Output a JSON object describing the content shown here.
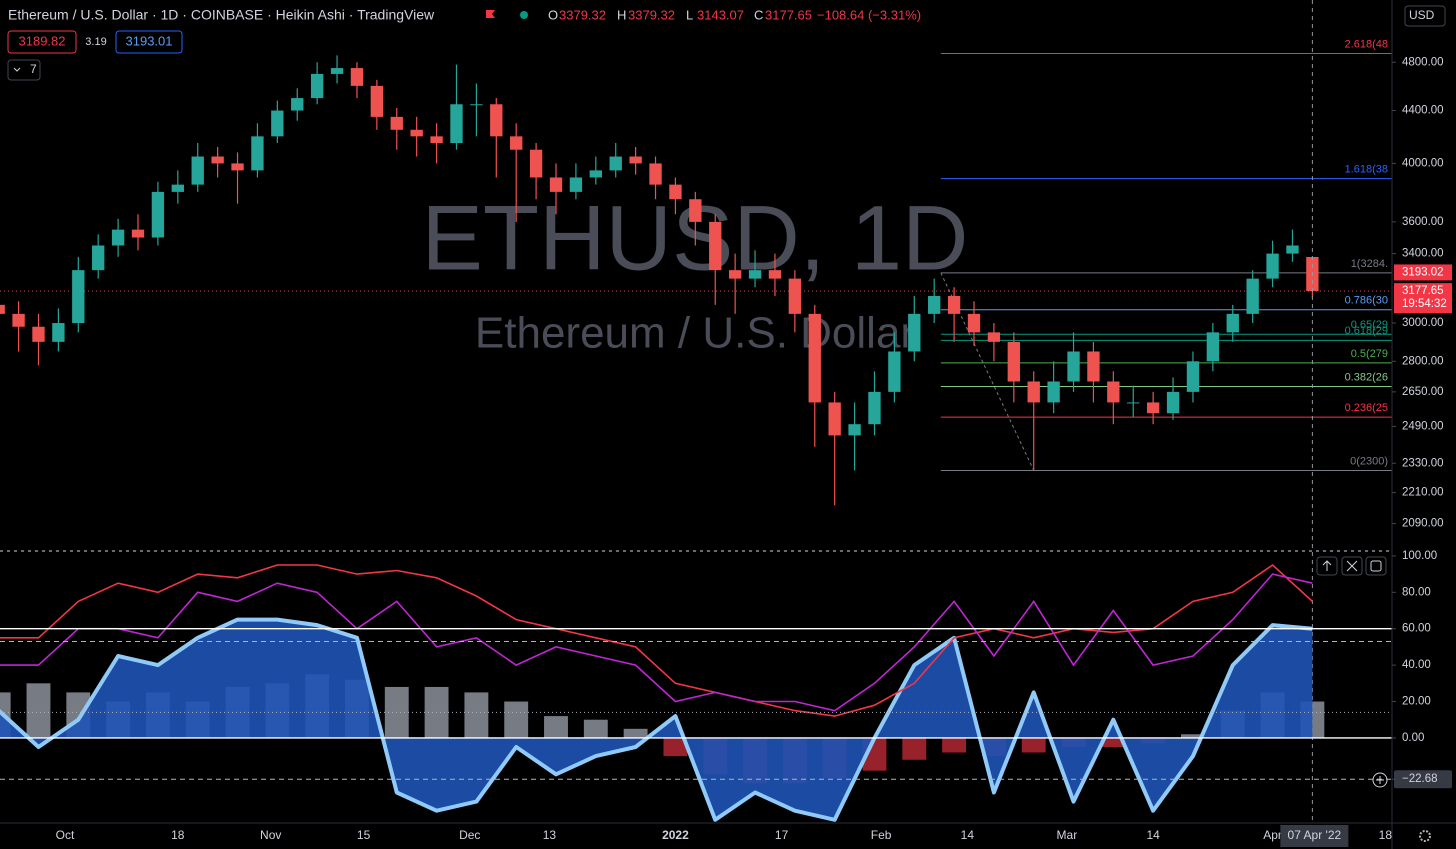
{
  "header": {
    "title": "Ethereum / U.S. Dollar · 1D · COINBASE · Heikin Ashi · TradingView",
    "ohlc": [
      {
        "label": "O",
        "value": 3379.32
      },
      {
        "label": "H",
        "value": 3379.32
      },
      {
        "label": "L",
        "value": 3143.07
      },
      {
        "label": "C",
        "value": 3177.65
      }
    ],
    "change": "−108.64 (−3.31%)",
    "bid": 3189.82,
    "spread": 3.19,
    "ask": 3193.01,
    "indicators_count": 7,
    "currency": "USD"
  },
  "watermark": {
    "symbol": "ETHUSD, 1D",
    "name": "Ethereum / U.S. Dollar"
  },
  "chart_data": [
    {
      "type": "candlestick",
      "log_scale": true,
      "up_color": "#26a69a",
      "down_color": "#ef5350",
      "x": [
        -10,
        -7,
        -4,
        -1,
        2,
        5,
        8,
        11,
        14,
        17,
        20,
        23,
        26,
        29,
        32,
        35,
        38,
        41,
        44,
        47,
        50,
        53,
        56,
        59,
        62,
        65,
        68,
        71,
        74,
        77,
        80,
        83,
        86,
        89,
        92,
        95,
        98,
        101,
        104,
        107,
        110,
        113,
        116,
        119,
        122,
        125,
        128,
        131,
        134,
        137,
        140,
        143,
        146,
        149,
        152,
        155,
        158,
        161,
        164,
        167,
        170,
        173,
        176,
        179,
        182,
        185,
        188
      ],
      "open": [
        3100,
        3050,
        2980,
        2900,
        3000,
        3300,
        3450,
        3550,
        3500,
        3800,
        3850,
        4050,
        4000,
        3950,
        4200,
        4400,
        4500,
        4700,
        4750,
        4600,
        4350,
        4250,
        4200,
        4150,
        4450,
        4450,
        4200,
        4100,
        3900,
        3800,
        3900,
        3950,
        4050,
        4000,
        3850,
        3750,
        3600,
        3300,
        3250,
        3300,
        3250,
        3050,
        2600,
        2450,
        2500,
        2650,
        2850,
        3050,
        3150,
        3050,
        2950,
        2900,
        2700,
        2600,
        2700,
        2850,
        2700,
        2600,
        2600,
        2550,
        2650,
        2800,
        2950,
        3050,
        3250,
        3400,
        3379.32
      ],
      "high": [
        3180,
        3120,
        3050,
        3080,
        3380,
        3520,
        3620,
        3650,
        3870,
        3950,
        4150,
        4120,
        4080,
        4300,
        4480,
        4580,
        4800,
        4860,
        4800,
        4650,
        4420,
        4350,
        4300,
        4780,
        4620,
        4500,
        4300,
        4150,
        4000,
        4000,
        4050,
        4150,
        4120,
        4050,
        3900,
        3800,
        3650,
        3400,
        3420,
        3400,
        3300,
        3100,
        2650,
        2600,
        2750,
        2950,
        3150,
        3250,
        3200,
        3120,
        3000,
        2950,
        2750,
        2800,
        2950,
        2900,
        2750,
        2680,
        2650,
        2720,
        2850,
        3000,
        3100,
        3300,
        3480,
        3550,
        3379.32
      ],
      "low": [
        2950,
        2850,
        2780,
        2850,
        2950,
        3250,
        3380,
        3420,
        3450,
        3720,
        3800,
        3900,
        3720,
        3900,
        4150,
        4320,
        4450,
        4620,
        4500,
        4250,
        4100,
        4050,
        4000,
        4100,
        4200,
        3900,
        3600,
        3750,
        3650,
        3750,
        3850,
        3900,
        3920,
        3750,
        3650,
        3450,
        3100,
        3050,
        3200,
        3150,
        2950,
        2400,
        2160,
        2300,
        2450,
        2600,
        2800,
        3000,
        2900,
        2880,
        2800,
        2600,
        2300,
        2550,
        2650,
        2600,
        2500,
        2530,
        2500,
        2520,
        2600,
        2750,
        2900,
        3000,
        3200,
        3350,
        3143.07
      ],
      "close": [
        3050,
        2980,
        2900,
        3000,
        3300,
        3450,
        3550,
        3500,
        3800,
        3850,
        4050,
        4000,
        3950,
        4200,
        4400,
        4500,
        4700,
        4750,
        4600,
        4350,
        4250,
        4200,
        4150,
        4450,
        4450,
        4200,
        4100,
        3900,
        3800,
        3900,
        3950,
        4050,
        4000,
        3850,
        3750,
        3600,
        3300,
        3250,
        3300,
        3250,
        3050,
        2600,
        2450,
        2500,
        2650,
        2850,
        3050,
        3150,
        3050,
        2950,
        2900,
        2700,
        2600,
        2700,
        2850,
        2700,
        2600,
        2600,
        2550,
        2650,
        2800,
        2950,
        3050,
        3250,
        3400,
        3450,
        3177.65
      ],
      "xlim": [
        -9.8,
        200
      ],
      "xticks": [
        {
          "value": 0,
          "label": "Oct"
        },
        {
          "value": 17,
          "label": "18"
        },
        {
          "value": 31,
          "label": "Nov"
        },
        {
          "value": 45,
          "label": "15"
        },
        {
          "value": 61,
          "label": "Dec"
        },
        {
          "value": 73,
          "label": "13"
        },
        {
          "value": 92,
          "label": "2022"
        },
        {
          "value": 108,
          "label": "17"
        },
        {
          "value": 123,
          "label": "Feb"
        },
        {
          "value": 136,
          "label": "14"
        },
        {
          "value": 151,
          "label": "Mar"
        },
        {
          "value": 164,
          "label": "14"
        },
        {
          "value": 182,
          "label": "Apr"
        },
        {
          "value": 199,
          "label": "18"
        }
      ],
      "ylim": [
        2000,
        5370
      ],
      "yticks": [
        {
          "value": 4800,
          "label": "4800.00"
        },
        {
          "value": 4400,
          "label": "4400.00"
        },
        {
          "value": 4000,
          "label": "4000.00"
        },
        {
          "value": 3600,
          "label": "3600.00"
        },
        {
          "value": 3400,
          "label": "3400.00"
        },
        {
          "value": 3000,
          "label": "3000.00"
        },
        {
          "value": 2800,
          "label": "2800.00"
        },
        {
          "value": 2650,
          "label": "2650.00"
        },
        {
          "value": 2490,
          "label": "2490.00"
        },
        {
          "value": 2330,
          "label": "2330.00"
        },
        {
          "value": 2210,
          "label": "2210.00"
        },
        {
          "value": 2090,
          "label": "2090.00"
        }
      ],
      "fib_anchor": {
        "x": [
          132,
          146
        ],
        "y": [
          3284,
          2300
        ]
      },
      "fib_levels": [
        {
          "label": "2.618(48",
          "value": 4876,
          "color": "#f23645"
        },
        {
          "label": "1.618(38",
          "value": 3892,
          "color": "#2962ff"
        },
        {
          "label": "1(3284.",
          "value": 3284,
          "color": "#787b86"
        },
        {
          "label": "0.786(30",
          "value": 3073,
          "color": "#5b9cf6"
        },
        {
          "label": "0.65(29",
          "value": 2940,
          "color": "#089981"
        },
        {
          "label": "0.618(29",
          "value": 2908,
          "color": "#089981"
        },
        {
          "label": "0.5(279",
          "value": 2792,
          "color": "#4caf50"
        },
        {
          "label": "0.382(26",
          "value": 2676,
          "color": "#81c784"
        },
        {
          "label": "0.236(25",
          "value": 2532,
          "color": "#f23645"
        },
        {
          "label": "0(2300)",
          "value": 2300,
          "color": "#787b86"
        }
      ],
      "ask_line": 3193.02,
      "last_price": 3177.65,
      "countdown": "19:54:32",
      "crosshair": {
        "x": 188,
        "label": "07 Apr '22"
      }
    },
    {
      "type": "oscillator",
      "ylim": [
        -46.2,
        102.7
      ],
      "yticks": [
        {
          "value": 100,
          "label": "100.00"
        },
        {
          "value": 80,
          "label": "80.00"
        },
        {
          "value": 60,
          "label": "60.00"
        },
        {
          "value": 40,
          "label": "40.00"
        },
        {
          "value": 20,
          "label": "20.00"
        },
        {
          "value": 0,
          "label": "0.00"
        },
        {
          "value": -22.68,
          "label": "−22.68"
        }
      ],
      "levels": [
        {
          "value": 60,
          "style": "solid"
        },
        {
          "value": 53,
          "style": "dashed"
        },
        {
          "value": 14,
          "style": "dotted"
        },
        {
          "value": 0,
          "style": "solid"
        },
        {
          "value": -22.68,
          "style": "dashed"
        }
      ],
      "x": [
        -10,
        -4,
        2,
        8,
        14,
        20,
        26,
        32,
        38,
        44,
        50,
        56,
        62,
        68,
        74,
        80,
        86,
        92,
        98,
        104,
        110,
        116,
        122,
        128,
        134,
        140,
        146,
        152,
        158,
        164,
        170,
        176,
        182,
        188
      ],
      "series": [
        {
          "style": "histogram",
          "color": "#8c909a",
          "negative_color": "#b22833",
          "values": [
            25,
            30,
            25,
            20,
            25,
            20,
            28,
            30,
            35,
            32,
            28,
            28,
            25,
            20,
            12,
            10,
            5,
            -10,
            -20,
            -25,
            -25,
            -22,
            -18,
            -12,
            -8,
            -10,
            -8,
            -5,
            -5,
            -3,
            2,
            15,
            25,
            20
          ]
        },
        {
          "style": "area",
          "color": "#90caf9",
          "fill": "#1e53b5",
          "values": [
            15,
            -5,
            10,
            45,
            40,
            55,
            65,
            65,
            62,
            55,
            -30,
            -40,
            -35,
            -5,
            -20,
            -10,
            -5,
            12,
            -45,
            -30,
            -40,
            -45,
            0,
            40,
            55,
            -30,
            25,
            -35,
            10,
            -40,
            -10,
            40,
            62,
            60
          ]
        },
        {
          "style": "line",
          "color": "#f23645",
          "values": [
            55,
            55,
            75,
            85,
            80,
            90,
            88,
            95,
            95,
            90,
            92,
            88,
            78,
            65,
            60,
            55,
            50,
            30,
            25,
            20,
            15,
            12,
            18,
            30,
            55,
            60,
            55,
            60,
            58,
            60,
            75,
            80,
            95,
            75
          ]
        },
        {
          "style": "line",
          "color": "#c026d3",
          "values": [
            40,
            40,
            60,
            60,
            55,
            80,
            75,
            85,
            80,
            60,
            75,
            50,
            55,
            40,
            50,
            45,
            40,
            20,
            25,
            20,
            20,
            15,
            30,
            50,
            75,
            45,
            75,
            40,
            70,
            40,
            45,
            65,
            90,
            85
          ]
        }
      ]
    }
  ]
}
